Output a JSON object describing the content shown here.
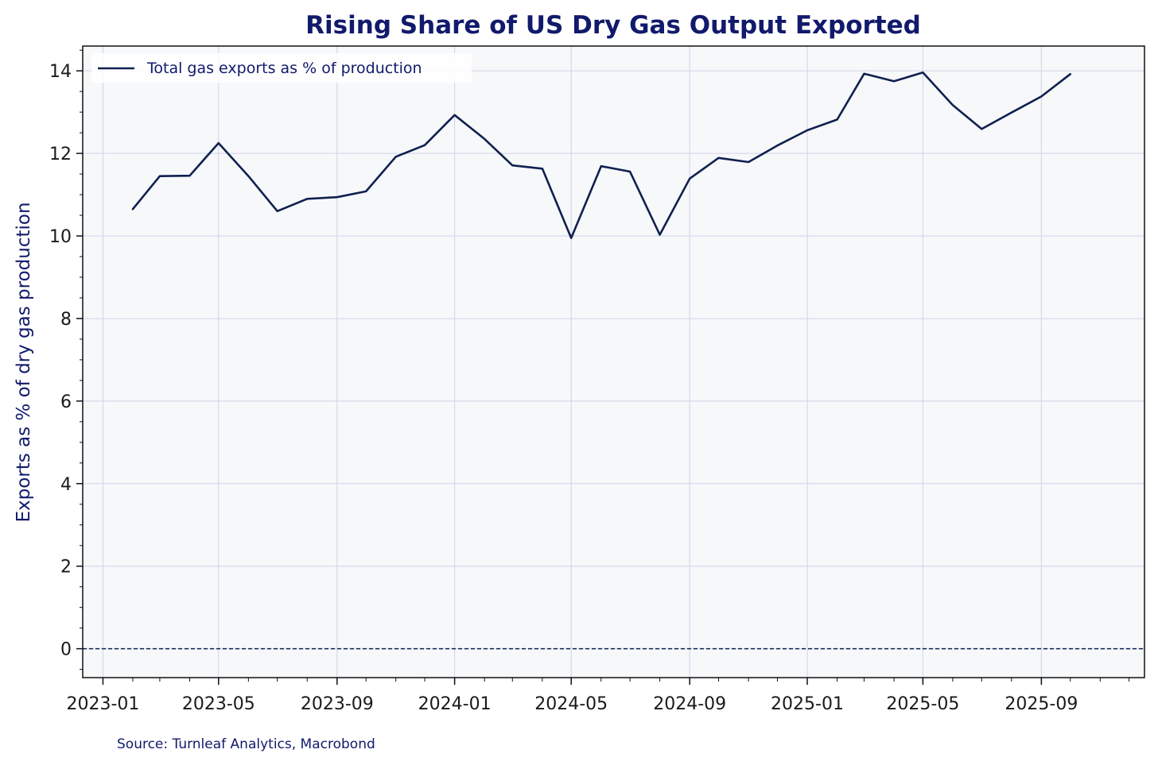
{
  "colors": {
    "line": "#10204f",
    "text": "#111a6b",
    "plot_bg": "#f6f8fa",
    "grid": "#cfd3e6",
    "zero_line": "#10204f"
  },
  "chart_data": {
    "type": "line",
    "title": "Rising Share of US Dry Gas Output Exported",
    "xlabel": "",
    "ylabel": "Exports as % of dry gas production",
    "source": "Source: Turnleaf Analytics, Macrobond",
    "ylim": [
      -0.7,
      14.6
    ],
    "xlim": [
      "2022-12-11",
      "2025-12-17"
    ],
    "grid": true,
    "legend_position": "top-left",
    "zero_line": {
      "value": 0,
      "style": "dashed"
    },
    "x_ticks": [
      "2023-01",
      "2023-05",
      "2023-09",
      "2024-01",
      "2024-05",
      "2024-09",
      "2025-01",
      "2025-05",
      "2025-09"
    ],
    "y_ticks": [
      0,
      2,
      4,
      6,
      8,
      10,
      12,
      14
    ],
    "series": [
      {
        "name": "Total gas exports as % of production",
        "x": [
          "2023-02",
          "2023-03",
          "2023-04",
          "2023-05",
          "2023-06",
          "2023-07",
          "2023-08",
          "2023-09",
          "2023-10",
          "2023-11",
          "2023-12",
          "2024-01",
          "2024-02",
          "2024-03",
          "2024-04",
          "2024-05",
          "2024-06",
          "2024-07",
          "2024-08",
          "2024-09",
          "2024-10",
          "2024-11",
          "2024-12",
          "2025-01",
          "2025-02",
          "2025-03",
          "2025-04",
          "2025-05",
          "2025-06",
          "2025-07",
          "2025-08",
          "2025-09",
          "2025-10"
        ],
        "values": [
          10.65,
          11.45,
          11.46,
          12.25,
          11.45,
          10.6,
          10.9,
          10.94,
          11.08,
          11.92,
          12.2,
          12.93,
          12.35,
          11.71,
          11.63,
          9.95,
          11.69,
          11.56,
          10.03,
          11.39,
          11.89,
          11.79,
          12.19,
          12.56,
          12.82,
          13.93,
          13.75,
          13.96,
          13.17,
          12.59,
          12.99,
          13.38,
          13.92
        ]
      }
    ]
  }
}
